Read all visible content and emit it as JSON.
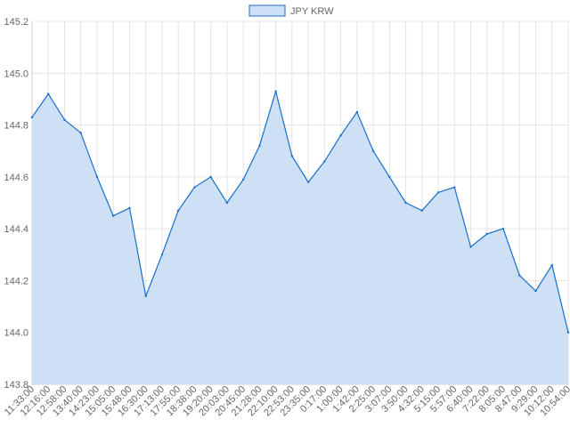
{
  "chart_data": {
    "type": "area",
    "title": "",
    "xlabel": "",
    "ylabel": "",
    "legend": {
      "position": "top",
      "entries": [
        "JPY KRW"
      ]
    },
    "grid": true,
    "ylim": [
      143.8,
      145.2
    ],
    "y_ticks": [
      "145.2",
      "145.0",
      "144.8",
      "144.6",
      "144.4",
      "144.2",
      "144.0",
      "143.8"
    ],
    "x_tick_labels": [
      "11:33:00",
      "12:16:00",
      "12:58:00",
      "13:40:00",
      "14:23:00",
      "15:05:00",
      "15:48:00",
      "16:30:00",
      "17:13:00",
      "17:55:00",
      "18:38:00",
      "19:20:00",
      "20:03:00",
      "20:45:00",
      "21:28:00",
      "22:10:00",
      "22:53:00",
      "23:35:00",
      "0:17:00",
      "1:00:00",
      "1:42:00",
      "2:25:00",
      "3:07:00",
      "3:50:00",
      "4:32:00",
      "5:15:00",
      "5:57:00",
      "6:40:00",
      "7:22:00",
      "8:05:00",
      "8:47:00",
      "9:29:00",
      "10:12:00",
      "10:54:00"
    ],
    "series": [
      {
        "name": "JPY KRW",
        "color": "#1a6fc9",
        "fill": "#cde0f5",
        "x": [
          "11:33:00",
          "12:16:00",
          "12:58:00",
          "13:40:00",
          "14:23:00",
          "15:05:00",
          "15:48:00",
          "16:30:00",
          "17:13:00",
          "17:55:00",
          "18:38:00",
          "19:20:00",
          "20:03:00",
          "20:45:00",
          "21:28:00",
          "22:10:00",
          "22:53:00",
          "23:35:00",
          "0:17:00",
          "1:00:00",
          "1:42:00",
          "2:25:00",
          "3:07:00",
          "3:50:00",
          "4:32:00",
          "5:15:00",
          "5:57:00",
          "6:40:00",
          "7:22:00",
          "8:05:00",
          "8:47:00",
          "9:29:00",
          "10:12:00",
          "10:54:00"
        ],
        "values": [
          144.83,
          144.92,
          144.82,
          144.77,
          144.6,
          144.45,
          144.48,
          144.14,
          144.3,
          144.47,
          144.56,
          144.6,
          144.5,
          144.59,
          144.72,
          144.93,
          144.68,
          144.58,
          144.66,
          144.76,
          144.85,
          144.7,
          144.6,
          144.5,
          144.47,
          144.54,
          144.56,
          144.33,
          144.38,
          144.4,
          144.22,
          144.16,
          144.26,
          144.0
        ]
      }
    ]
  }
}
